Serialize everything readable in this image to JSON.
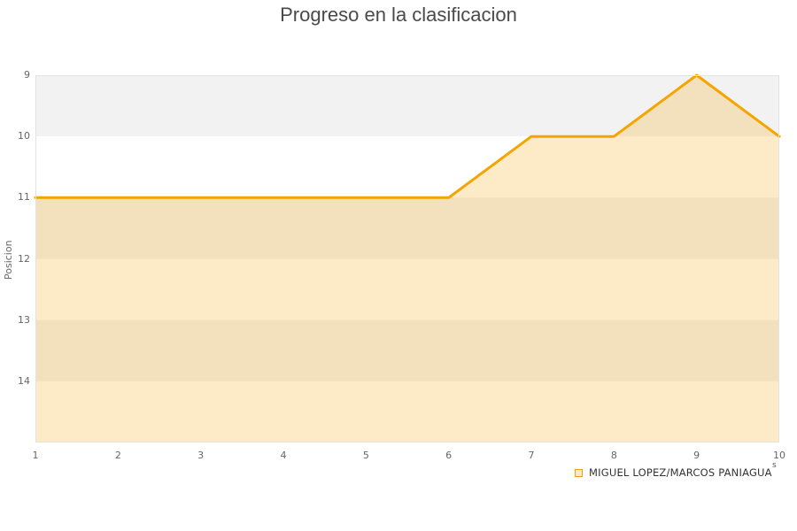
{
  "title": "Progreso en la clasificacion",
  "chart_data": {
    "type": "area",
    "title": "Progreso en la clasificacion",
    "xlabel": "",
    "ylabel": "Posicion",
    "x": [
      1,
      2,
      3,
      4,
      5,
      6,
      7,
      8,
      9,
      10
    ],
    "x_ticks": [
      1,
      2,
      3,
      4,
      5,
      6,
      7,
      8,
      9,
      10
    ],
    "y_ticks": [
      9,
      10,
      11,
      12,
      13,
      14
    ],
    "ylim": [
      9,
      15
    ],
    "y_inverted": true,
    "grid": "horizontal-bands",
    "legend_position": "bottom-right",
    "series": [
      {
        "name": "MIGUEL LOPEZ/MARCOS PANIAGUA",
        "values": [
          11,
          11,
          11,
          11,
          11,
          11,
          10,
          10,
          9,
          10
        ]
      }
    ],
    "colors": {
      "line": "#F5A400",
      "fill": "#F5A400",
      "fill_opacity": 0.22,
      "band_gray": "#F2F2F2",
      "band_white": "#FFFFFF",
      "plot_border": "#E3E3E3",
      "tick_text": "#666666",
      "title_text": "#4A4A4A"
    }
  },
  "legend": {
    "label": "MIGUEL LOPEZ/MARCOS PANIAGUA",
    "suffix": "s",
    "swatch_border": "#F2A105",
    "swatch_fill": "#FBE9CA"
  }
}
